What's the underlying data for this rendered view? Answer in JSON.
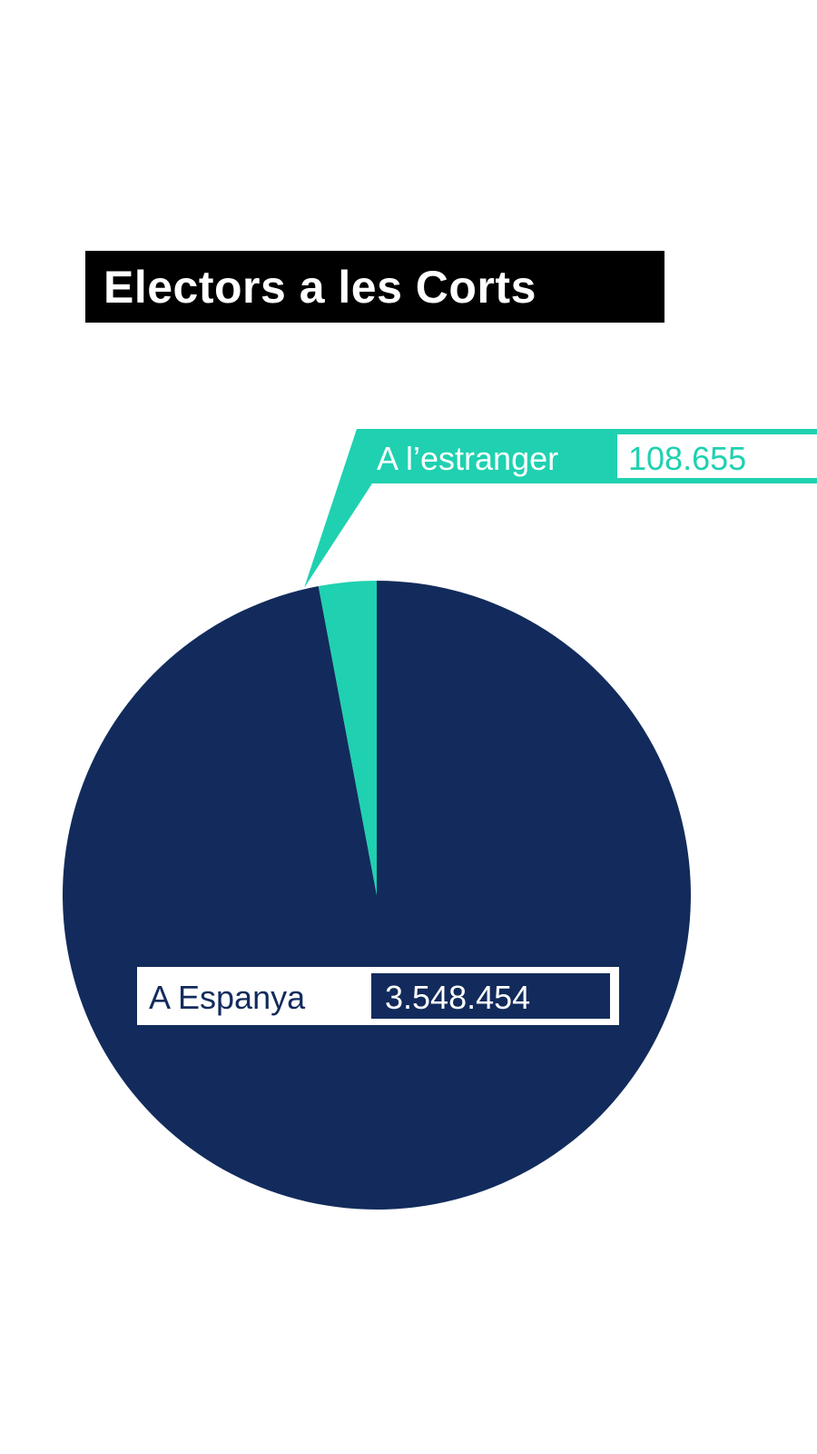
{
  "title": "Electors a les Corts",
  "colors": {
    "background": "#ffffff",
    "title_bg": "#000000",
    "title_text": "#ffffff"
  },
  "chart_data": {
    "type": "pie",
    "slices": [
      {
        "label": "A Espanya",
        "value": 3548454,
        "value_label": "3.548.454",
        "color": "#122b5c"
      },
      {
        "label": "A l’estranger",
        "value": 108655,
        "value_label": "108.655",
        "color": "#1fd1b0"
      }
    ]
  }
}
